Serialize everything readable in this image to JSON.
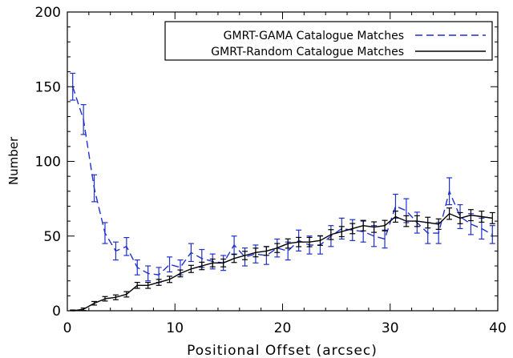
{
  "chart_data": {
    "type": "line",
    "title": "",
    "xlabel": "Positional Offset (arcsec)",
    "ylabel": "Number",
    "xlim": [
      0,
      40
    ],
    "ylim": [
      0,
      200
    ],
    "xticks": [
      0,
      10,
      20,
      30,
      40
    ],
    "yticks": [
      0,
      50,
      100,
      150,
      200
    ],
    "grid": false,
    "legend_position": "top-right",
    "series": [
      {
        "name": "GMRT-GAMA Catalogue Matches",
        "color": "#1f2fd0",
        "style": "dashed",
        "x": [
          0.5,
          1.5,
          2.5,
          3.5,
          4.5,
          5.5,
          6.5,
          7.5,
          8.5,
          9.5,
          10.5,
          11.5,
          12.5,
          13.5,
          14.5,
          15.5,
          16.5,
          17.5,
          18.5,
          19.5,
          20.5,
          21.5,
          22.5,
          23.5,
          24.5,
          25.5,
          26.5,
          27.5,
          28.5,
          29.5,
          30.5,
          31.5,
          32.5,
          33.5,
          34.5,
          35.5,
          36.5,
          37.5,
          38.5,
          39.5
        ],
        "y": [
          150,
          128,
          82,
          52,
          40,
          43,
          29,
          25,
          24,
          31,
          29,
          39,
          35,
          33,
          32,
          44,
          36,
          38,
          37,
          42,
          40,
          47,
          44,
          44,
          50,
          55,
          54,
          53,
          50,
          48,
          70,
          67,
          59,
          52,
          52,
          80,
          63,
          58,
          55,
          51
        ],
        "err": [
          9,
          10,
          9,
          7,
          6,
          6,
          5,
          5,
          5,
          5,
          5,
          6,
          6,
          5,
          5,
          6,
          6,
          6,
          6,
          6,
          6,
          7,
          6,
          6,
          7,
          7,
          7,
          7,
          7,
          6,
          8,
          8,
          7,
          7,
          7,
          9,
          8,
          7,
          7,
          6
        ]
      },
      {
        "name": "GMRT-Random Catalogue Matches",
        "color": "#000000",
        "style": "solid",
        "x": [
          0.5,
          1.5,
          2.5,
          3.5,
          4.5,
          5.5,
          6.5,
          7.5,
          8.5,
          9.5,
          10.5,
          11.5,
          12.5,
          13.5,
          14.5,
          15.5,
          16.5,
          17.5,
          18.5,
          19.5,
          20.5,
          21.5,
          22.5,
          23.5,
          24.5,
          25.5,
          26.5,
          27.5,
          28.5,
          29.5,
          30.5,
          31.5,
          32.5,
          33.5,
          34.5,
          35.5,
          36.5,
          37.5,
          38.5,
          39.5
        ],
        "y": [
          0,
          1,
          5,
          8,
          9,
          11,
          17,
          17,
          19,
          21,
          25,
          28,
          30,
          32,
          32,
          35,
          37,
          39,
          40,
          42,
          45,
          46,
          46,
          47,
          51,
          53,
          55,
          57,
          56,
          57,
          63,
          60,
          60,
          59,
          58,
          65,
          62,
          64,
          63,
          62
        ],
        "err": [
          0.5,
          0.8,
          1.2,
          1.5,
          1.6,
          1.8,
          2,
          2,
          2,
          2.1,
          2.3,
          2.4,
          2.5,
          2.6,
          2.6,
          2.7,
          2.8,
          2.9,
          2.9,
          3,
          3.1,
          3.1,
          3.1,
          3.2,
          3.3,
          3.4,
          3.4,
          3.5,
          3.5,
          3.5,
          3.7,
          3.6,
          3.6,
          3.6,
          3.5,
          3.8,
          3.7,
          3.7,
          3.7,
          3.7
        ]
      }
    ]
  }
}
